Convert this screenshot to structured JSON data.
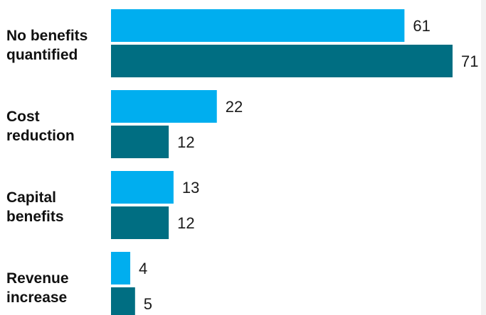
{
  "chart_data": {
    "type": "bar",
    "orientation": "horizontal",
    "categories": [
      [
        "No benefits",
        "quantified"
      ],
      [
        "Cost",
        "reduction"
      ],
      [
        "Capital",
        "benefits"
      ],
      [
        "Revenue",
        "increase"
      ]
    ],
    "series": [
      {
        "values": [
          61,
          22,
          13,
          4
        ],
        "color": "#00aeef"
      },
      {
        "values": [
          71,
          12,
          12,
          5
        ],
        "color": "#006e82"
      }
    ],
    "xlim": [
      0,
      71
    ],
    "grid": false,
    "legend": "none"
  }
}
